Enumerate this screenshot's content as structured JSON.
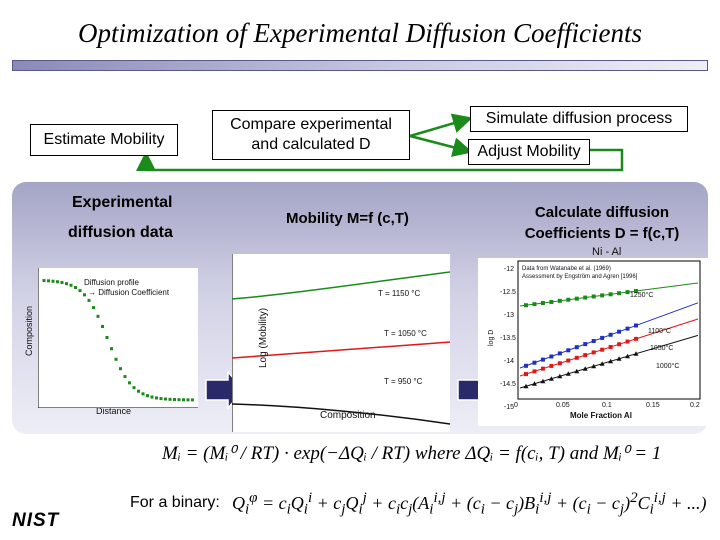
{
  "title": "Optimization of Experimental Diffusion Coefficients",
  "flow": {
    "estimate_mobility": "Estimate Mobility",
    "compare": [
      "Compare experimental",
      "and calculated D"
    ],
    "simulate": "Simulate diffusion process",
    "adjust": "Adjust Mobility"
  },
  "panel": {
    "experimental_line1": "Experimental",
    "experimental_line2": "diffusion data",
    "mobility": "Mobility  M=f (c,T)",
    "calc_line1": "Calculate diffusion",
    "calc_line2": "Coefficients D = f(c,T)"
  },
  "profile_plot": {
    "annotation_line1": "Diffusion profile",
    "annotation_line2": "→ Diffusion Coefficient",
    "ylabel": "Composition",
    "xlabel": "Distance"
  },
  "mobility_plot": {
    "ylabel": "Log (Mobility)",
    "xlabel": "Composition",
    "curves": [
      {
        "label": "T = 1150 °C",
        "color": "#1a8a1a"
      },
      {
        "label": "T = 1050 °C",
        "color": "#e01818"
      },
      {
        "label": "T = 950 °C",
        "color": "#111111"
      }
    ]
  },
  "nial_plot": {
    "title": "Ni - Al",
    "legend_line1": "Data from Watanabe et al. (1969)",
    "legend_line2": "Assessment by Engström and Agren [1996]",
    "xlabel": "Mole Fraction Al",
    "ylabel": "log D",
    "y_ticks": [
      "-12",
      "-12.5",
      "-13",
      "-13.5",
      "-14",
      "-14.5",
      "-15"
    ],
    "x_ticks": [
      "0",
      "0.05",
      "0.1",
      "0.15",
      "0.2"
    ],
    "series": [
      {
        "label": "1250°C",
        "color": "#1a8a1a"
      },
      {
        "label": "1100°C",
        "color": "#2030c0"
      },
      {
        "label": "1050°C",
        "color": "#e01818"
      },
      {
        "label": "1000°C",
        "color": "#111111"
      }
    ]
  },
  "equations": {
    "mobility": "Mᵢ = (Mᵢ⁰ / RT) · exp(−ΔQᵢ / RT)   where ΔQᵢ = f(cᵢ, T)  and Mᵢ⁰ = 1",
    "binary_label": "For a binary:"
  },
  "logo": "NIST"
}
